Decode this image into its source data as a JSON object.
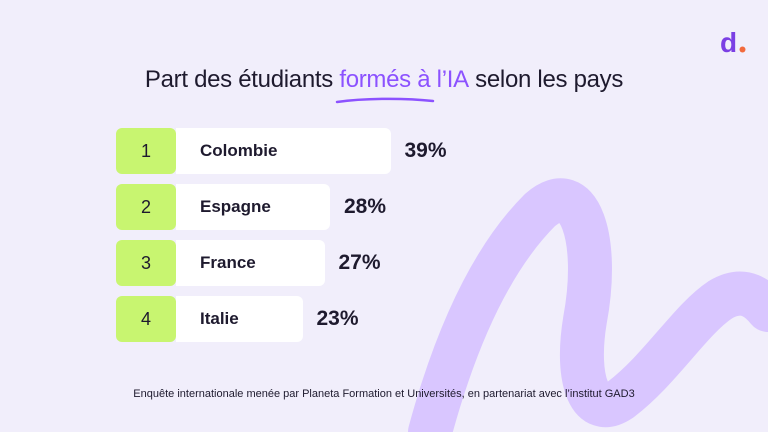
{
  "brand": {
    "logo_text": "d.",
    "accent_color": "#8c52ff",
    "logo_color": "#7b3fe4",
    "dot_color": "#f26a3d"
  },
  "title": {
    "prefix": "Part des étudiants ",
    "highlight": "formés à l’IA",
    "suffix": " selon les pays"
  },
  "footnote": "Enquête internationale menée par Planeta Formation et Universités, en partenariat avec l’institut GAD3",
  "chart_data": {
    "type": "bar",
    "orientation": "horizontal",
    "title": "Part des étudiants formés à l’IA selon les pays",
    "unit": "%",
    "ranks": [
      "1",
      "2",
      "3",
      "4"
    ],
    "categories": [
      "Colombie",
      "Espagne",
      "France",
      "Italie"
    ],
    "values": [
      39,
      28,
      27,
      23
    ],
    "value_labels": [
      "39%",
      "28%",
      "27%",
      "23%"
    ],
    "colors": {
      "rank_box": "#c8f570",
      "bar": "#ffffff"
    }
  }
}
